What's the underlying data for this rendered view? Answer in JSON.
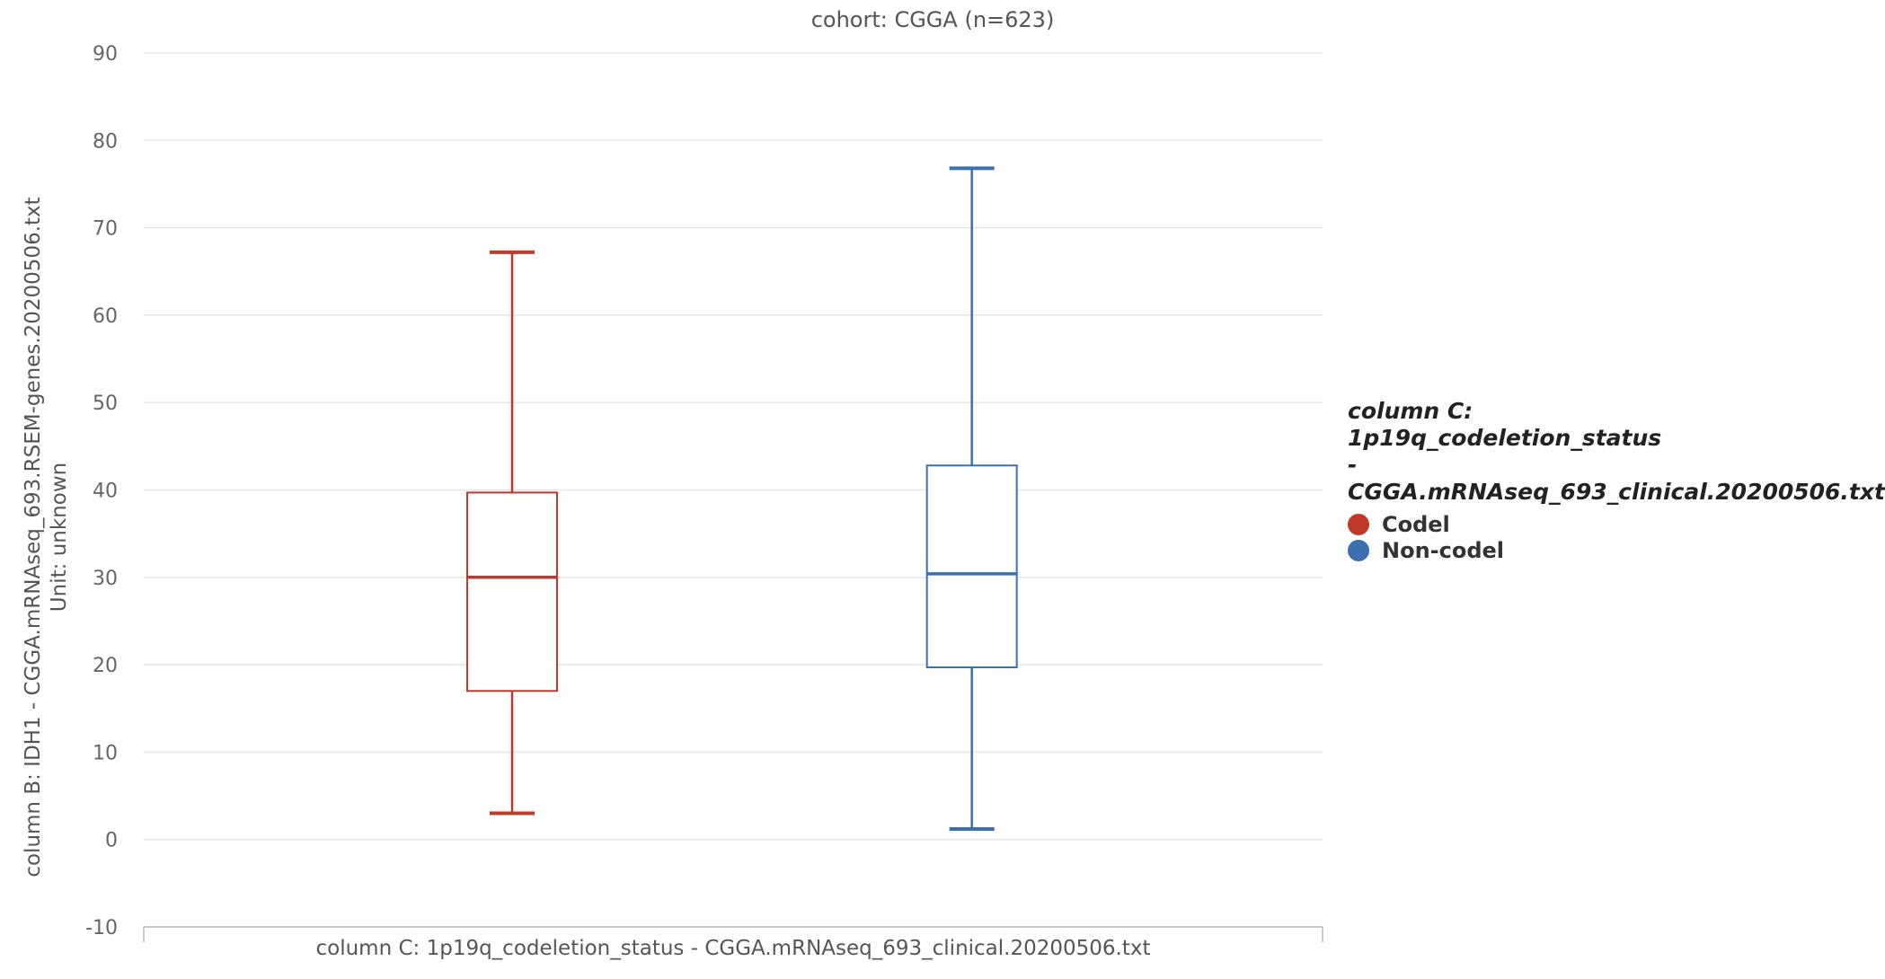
{
  "chart_data": {
    "type": "boxplot",
    "title": "cohort: CGGA (n=623)",
    "ylabel_line1": "column B: IDH1 - CGGA.mRNAseq_693.RSEM-genes.20200506.txt",
    "ylabel_line2": "Unit: unknown",
    "xlabel": "column C: 1p19q_codeletion_status - CGGA.mRNAseq_693_clinical.20200506.txt",
    "ylim": [
      -10,
      90
    ],
    "yticks": [
      "-10",
      "0",
      "10",
      "20",
      "30",
      "40",
      "50",
      "60",
      "70",
      "80",
      "90"
    ],
    "grid": true,
    "legend_placement": "right",
    "series": [
      {
        "name": "Codel",
        "color": "#c0392b",
        "min": 3,
        "q1": 17,
        "median": 30,
        "q3": 39.7,
        "max": 67.2
      },
      {
        "name": "Non-codel",
        "color": "#3a6fb0",
        "min": 1.2,
        "q1": 19.7,
        "median": 30.4,
        "q3": 42.8,
        "max": 76.8
      }
    ]
  },
  "legend": {
    "title_lines": [
      "column C:",
      "1p19q_codeletion_status",
      "-",
      "CGGA.mRNAseq_693_clinical.20200506.txt"
    ],
    "items": [
      {
        "label": "Codel",
        "color": "#c0392b"
      },
      {
        "label": "Non-codel",
        "color": "#3a6fb0"
      }
    ]
  }
}
